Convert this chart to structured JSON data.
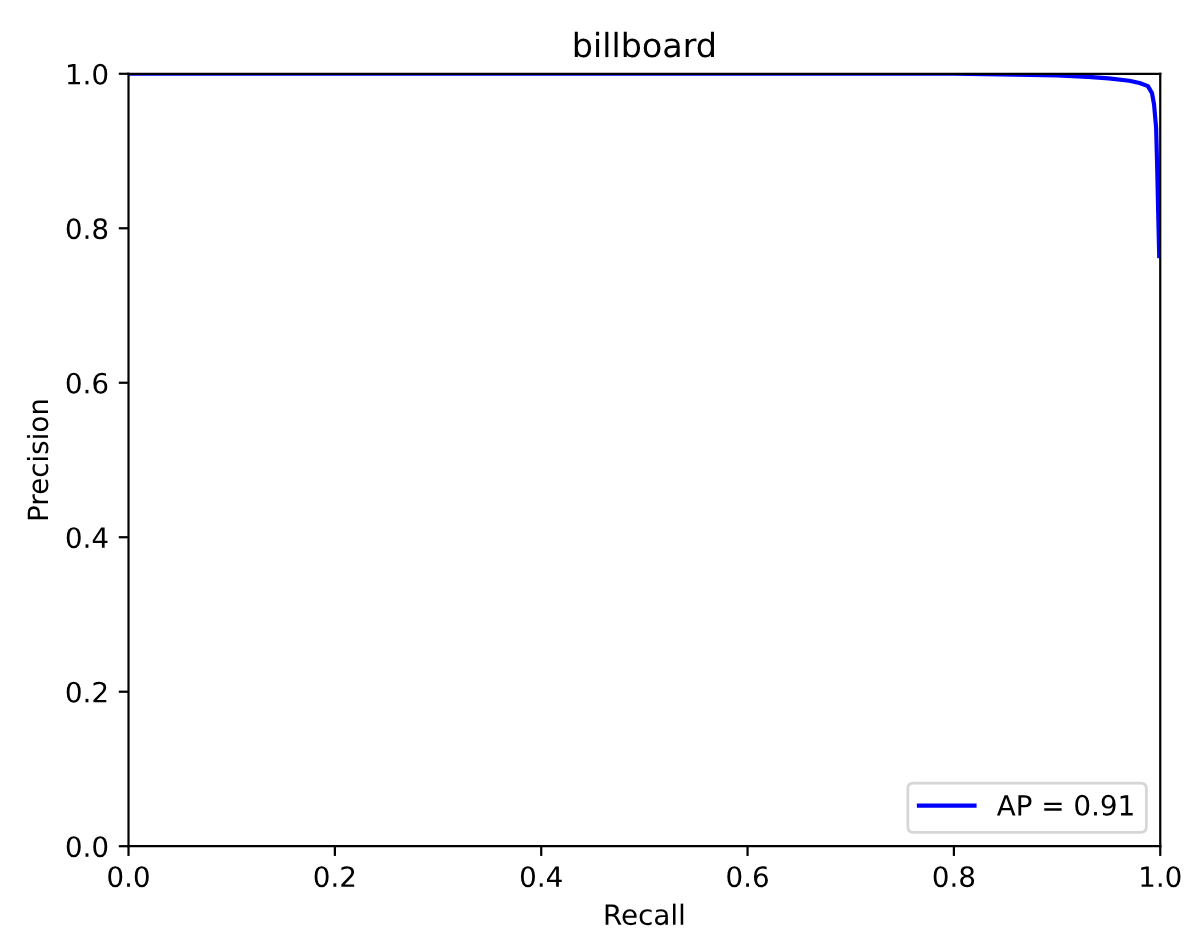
{
  "chart_data": {
    "type": "line",
    "title": "billboard",
    "xlabel": "Recall",
    "ylabel": "Precision",
    "series": [
      {
        "name": "AP = 0.91",
        "color": "#0000ff",
        "x": [
          0.0,
          0.5,
          0.8,
          0.86,
          0.9,
          0.93,
          0.95,
          0.97,
          0.98,
          0.988,
          0.992,
          0.994,
          0.996,
          0.997,
          0.998,
          0.999
        ],
        "values": [
          1.0,
          1.0,
          1.0,
          0.999,
          0.998,
          0.996,
          0.994,
          0.991,
          0.988,
          0.984,
          0.975,
          0.96,
          0.93,
          0.88,
          0.82,
          0.764
        ]
      }
    ],
    "xlim": [
      0.0,
      1.0
    ],
    "ylim": [
      0.0,
      1.0
    ],
    "xticks": [
      {
        "value": 0.0,
        "label": "0.0"
      },
      0.2,
      0.4,
      0.6,
      0.8,
      {
        "value": 1.0,
        "label": "1.0"
      }
    ],
    "yticks": [
      {
        "value": 0.0,
        "label": "0.0"
      },
      0.2,
      0.4,
      0.6,
      0.8,
      {
        "value": 1.0,
        "label": "1.0"
      }
    ],
    "legend": "lower right",
    "grid": false
  }
}
